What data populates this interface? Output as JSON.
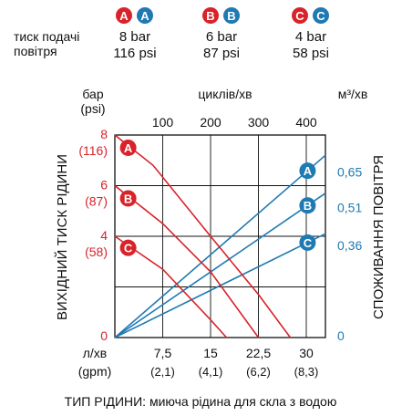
{
  "header": {
    "pressure_label_line1": "тиск подачі",
    "pressure_label_line2": "повітря",
    "columns": [
      {
        "key": "A",
        "bar": "8 bar",
        "psi": "116 psi"
      },
      {
        "key": "B",
        "bar": "6 bar",
        "psi": "87 psi"
      },
      {
        "key": "C",
        "bar": "4 bar",
        "psi": "58 psi"
      }
    ]
  },
  "chart_data": {
    "type": "line",
    "title": "",
    "left_axis": {
      "unit_line1": "бар",
      "unit_line2": "(psi)",
      "label": "ВИХІДНИЙ ТИСК РІДИНИ",
      "range": [
        0,
        8
      ],
      "ticks": [
        {
          "value": 8,
          "label": "8",
          "sub": "(116)"
        },
        {
          "value": 6,
          "label": "6",
          "sub": "(87)"
        },
        {
          "value": 4,
          "label": "4",
          "sub": "(58)"
        },
        {
          "value": 0,
          "label": "0",
          "sub": ""
        }
      ]
    },
    "right_axis": {
      "unit": "м³/хв",
      "label": "СПОЖИВАННЯ ПОВІТРЯ",
      "range": [
        0,
        0.8
      ],
      "ticks": [
        {
          "value": 0.65,
          "label": "0,65"
        },
        {
          "value": 0.51,
          "label": "0,51"
        },
        {
          "value": 0.36,
          "label": "0,36"
        },
        {
          "value": 0,
          "label": "0"
        }
      ]
    },
    "top_axis": {
      "unit": "циклів/хв",
      "range": [
        0,
        440
      ],
      "ticks": [
        {
          "value": 100,
          "label": "100"
        },
        {
          "value": 200,
          "label": "200"
        },
        {
          "value": 300,
          "label": "300"
        },
        {
          "value": 400,
          "label": "400"
        }
      ]
    },
    "bottom_axis": {
      "unit_line1": "л/хв",
      "unit_line2": "(gpm)",
      "range": [
        0,
        33
      ],
      "ticks": [
        {
          "value": 7.5,
          "label": "7,5",
          "sub": "(2,1)"
        },
        {
          "value": 15,
          "label": "15",
          "sub": "(4,1)"
        },
        {
          "value": 22.5,
          "label": "22,5",
          "sub": "(6,2)"
        },
        {
          "value": 30,
          "label": "30",
          "sub": "(8,3)"
        }
      ]
    },
    "grid": true,
    "fluid_pressure_series": [
      {
        "name": "A",
        "points": [
          [
            0,
            8.0
          ],
          [
            6,
            6.8
          ],
          [
            15,
            4.0
          ],
          [
            22.5,
            1.7
          ],
          [
            27.5,
            0
          ]
        ]
      },
      {
        "name": "B",
        "points": [
          [
            0,
            6.0
          ],
          [
            7.5,
            4.5
          ],
          [
            15,
            2.6
          ],
          [
            22.5,
            0
          ]
        ]
      },
      {
        "name": "C",
        "points": [
          [
            0,
            4.0
          ],
          [
            7.5,
            2.7
          ],
          [
            15,
            0.7
          ],
          [
            17.5,
            0
          ]
        ]
      }
    ],
    "air_consumption_series": [
      {
        "name": "A",
        "points": [
          [
            0,
            0
          ],
          [
            33,
            0.72
          ]
        ]
      },
      {
        "name": "B",
        "points": [
          [
            0,
            0
          ],
          [
            33,
            0.57
          ]
        ]
      },
      {
        "name": "C",
        "points": [
          [
            0,
            0
          ],
          [
            33,
            0.41
          ]
        ]
      }
    ],
    "colors": {
      "fluid": "#d8232a",
      "air": "#1f7ab3",
      "grid": "#111111",
      "blue_text": "#1f7ab3",
      "red_text": "#d8232a"
    }
  },
  "footer": {
    "label": "ТИП РІДИНИ:",
    "value": " миюча рідина для скла з водою"
  }
}
